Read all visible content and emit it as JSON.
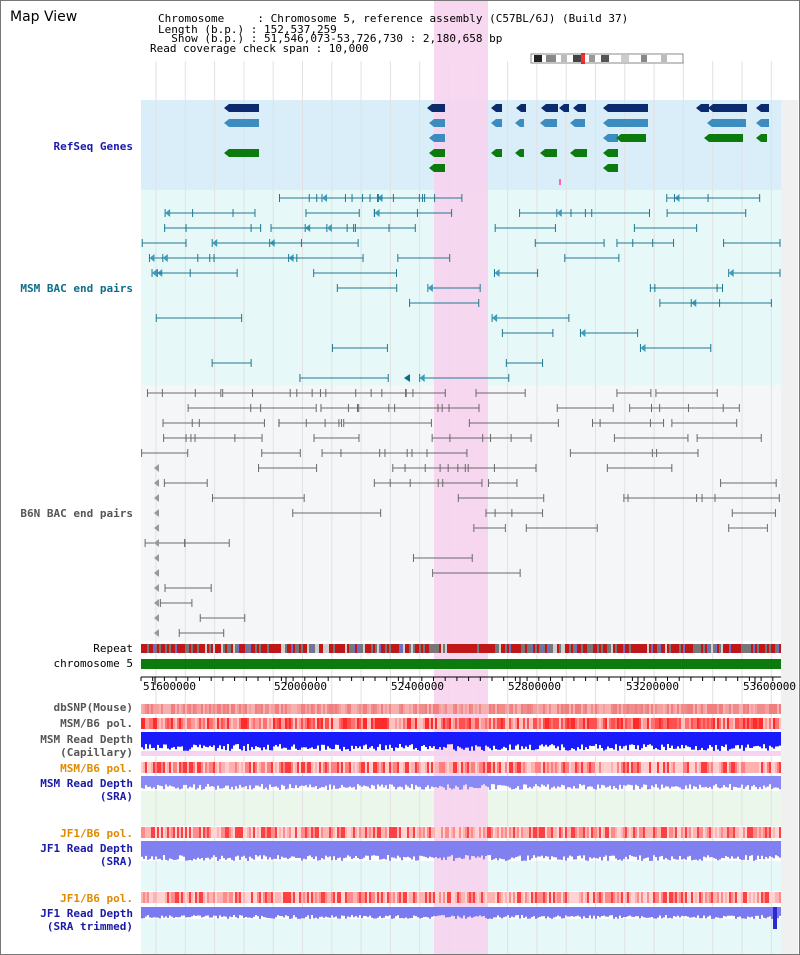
{
  "title": "Map View",
  "info": {
    "line1": "Chromosome     : Chromosome 5, reference assembly (C57BL/6J) (Build 37)",
    "line2": "Length (b.p.) : 152,537,259",
    "line3": "  Show (b.p.) : 51,546,073-53,726,730 : 2,180,658 bp",
    "line4": "Read coverage check span : 10,000"
  },
  "tracks": {
    "refseq": "RefSeq Genes",
    "msm_bac": "MSM BAC end pairs",
    "b6n_bac": "B6N BAC end pairs",
    "repeat": "Repeat",
    "chromosome": "chromosome 5",
    "dbsnp": "dbSNP(Mouse)",
    "msm_b6_pol_1": "MSM/B6 pol.",
    "msm_depth_cap_1": "MSM Read Depth",
    "msm_depth_cap_2": "(Capillary)",
    "msm_b6_pol_2": "MSM/B6 pol.",
    "msm_depth_sra_1": "MSM Read Depth",
    "msm_depth_sra_2": "(SRA)",
    "jf1_pol_1": "JF1/B6 pol.",
    "jf1_depth_sra_1": "JF1 Read Depth",
    "jf1_depth_sra_2": "(SRA)",
    "jf1_pol_2": "JF1/B6 pol.",
    "jf1_depth_trim_1": "JF1 Read Depth",
    "jf1_depth_trim_2": "(SRA trimmed)"
  },
  "axis": {
    "ticks": [
      "51600000",
      "52000000",
      "52400000",
      "52800000",
      "53200000",
      "53600000"
    ]
  },
  "colors": {
    "refseq_label": "#1a1aa8",
    "msm_label": "#0e6e8a",
    "b6n_label": "#555555",
    "orange_label": "#e08a00",
    "blue_label": "#1a1aa8",
    "highlight": "#f7d3ee",
    "chromosome_bar": "#0c7a0c"
  }
}
